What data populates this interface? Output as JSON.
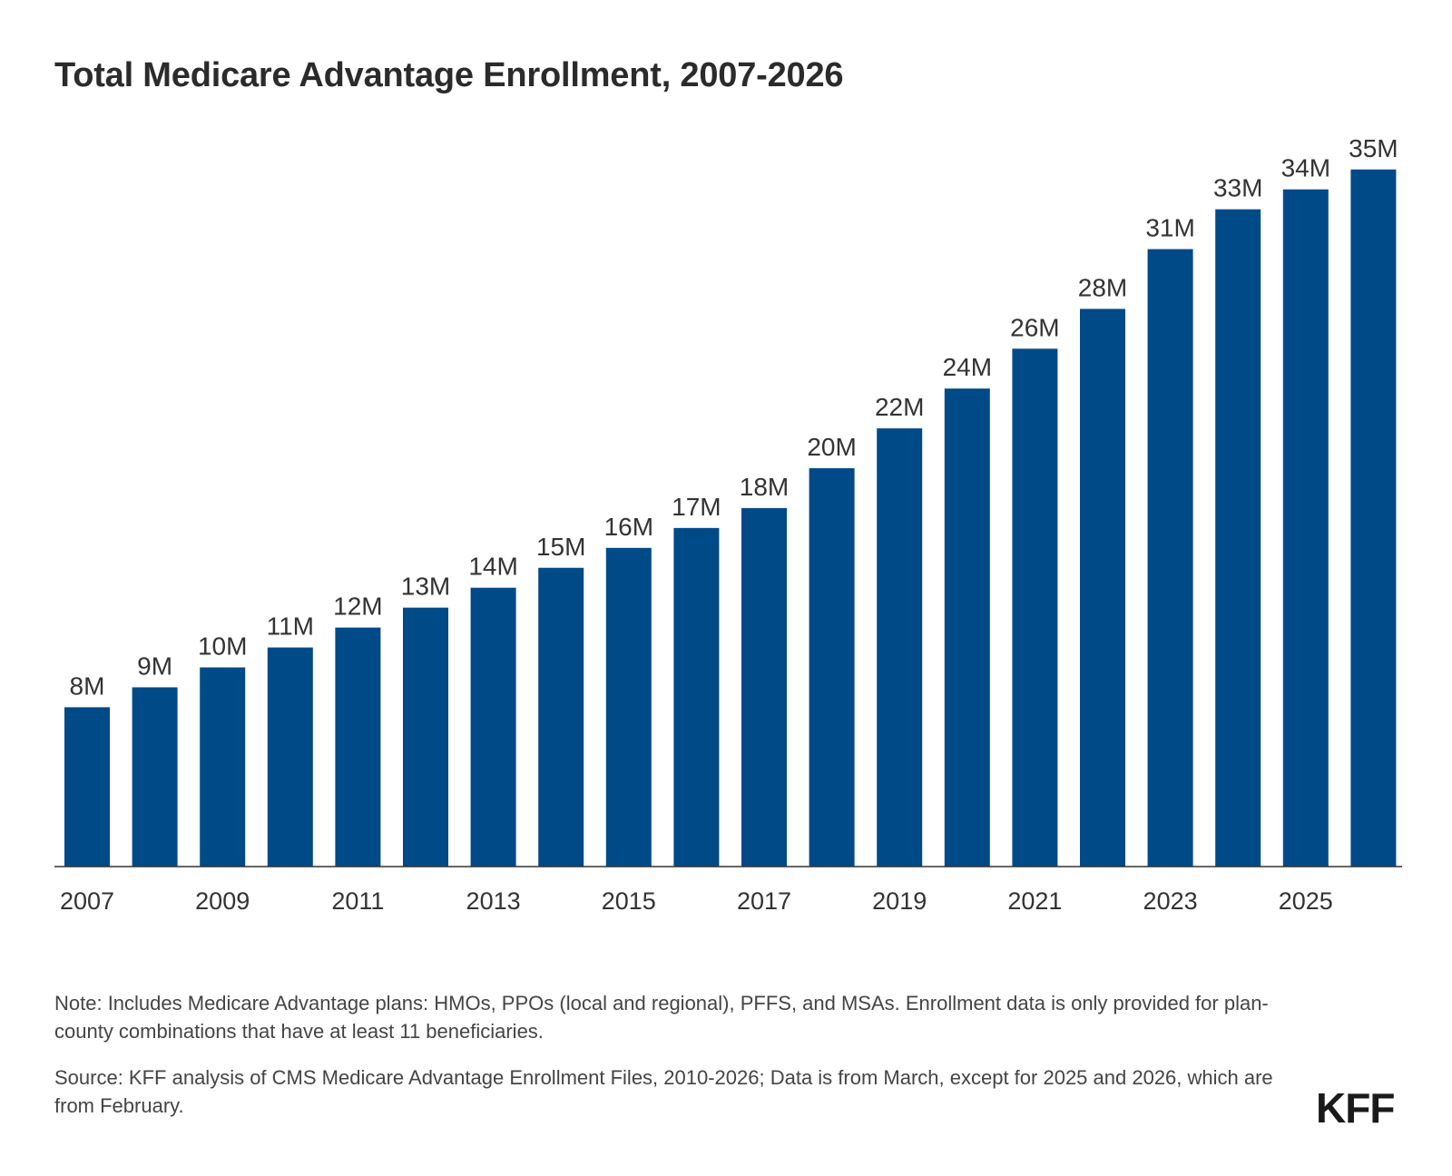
{
  "chart_data": {
    "type": "bar",
    "title": "Total Medicare Advantage Enrollment, 2007-2026",
    "categories": [
      "2007",
      "2008",
      "2009",
      "2010",
      "2011",
      "2012",
      "2013",
      "2014",
      "2015",
      "2016",
      "2017",
      "2018",
      "2019",
      "2020",
      "2021",
      "2022",
      "2023",
      "2024",
      "2025",
      "2026"
    ],
    "values": [
      8,
      9,
      10,
      11,
      12,
      13,
      14,
      15,
      16,
      17,
      18,
      20,
      22,
      24,
      26,
      28,
      31,
      33,
      34,
      35
    ],
    "value_labels": [
      "8M",
      "9M",
      "10M",
      "11M",
      "12M",
      "13M",
      "14M",
      "15M",
      "16M",
      "17M",
      "18M",
      "20M",
      "22M",
      "24M",
      "26M",
      "28M",
      "31M",
      "33M",
      "34M",
      "35M"
    ],
    "x_tick_labels": [
      "2007",
      "2009",
      "2011",
      "2013",
      "2015",
      "2017",
      "2019",
      "2021",
      "2023",
      "2025"
    ],
    "ylim": [
      0,
      36
    ],
    "grid": false,
    "legend": "none",
    "bar_color": "#004A87"
  },
  "note": "Note: Includes Medicare Advantage plans: HMOs, PPOs (local and regional), PFFS, and MSAs. Enrollment data is only provided for plan-county combinations that have at least 11 beneficiaries.",
  "source": "Source: KFF analysis of CMS Medicare Advantage Enrollment Files, 2010-2026; Data is from March, except for 2025 and 2026, which are from February.",
  "logo": "KFF"
}
